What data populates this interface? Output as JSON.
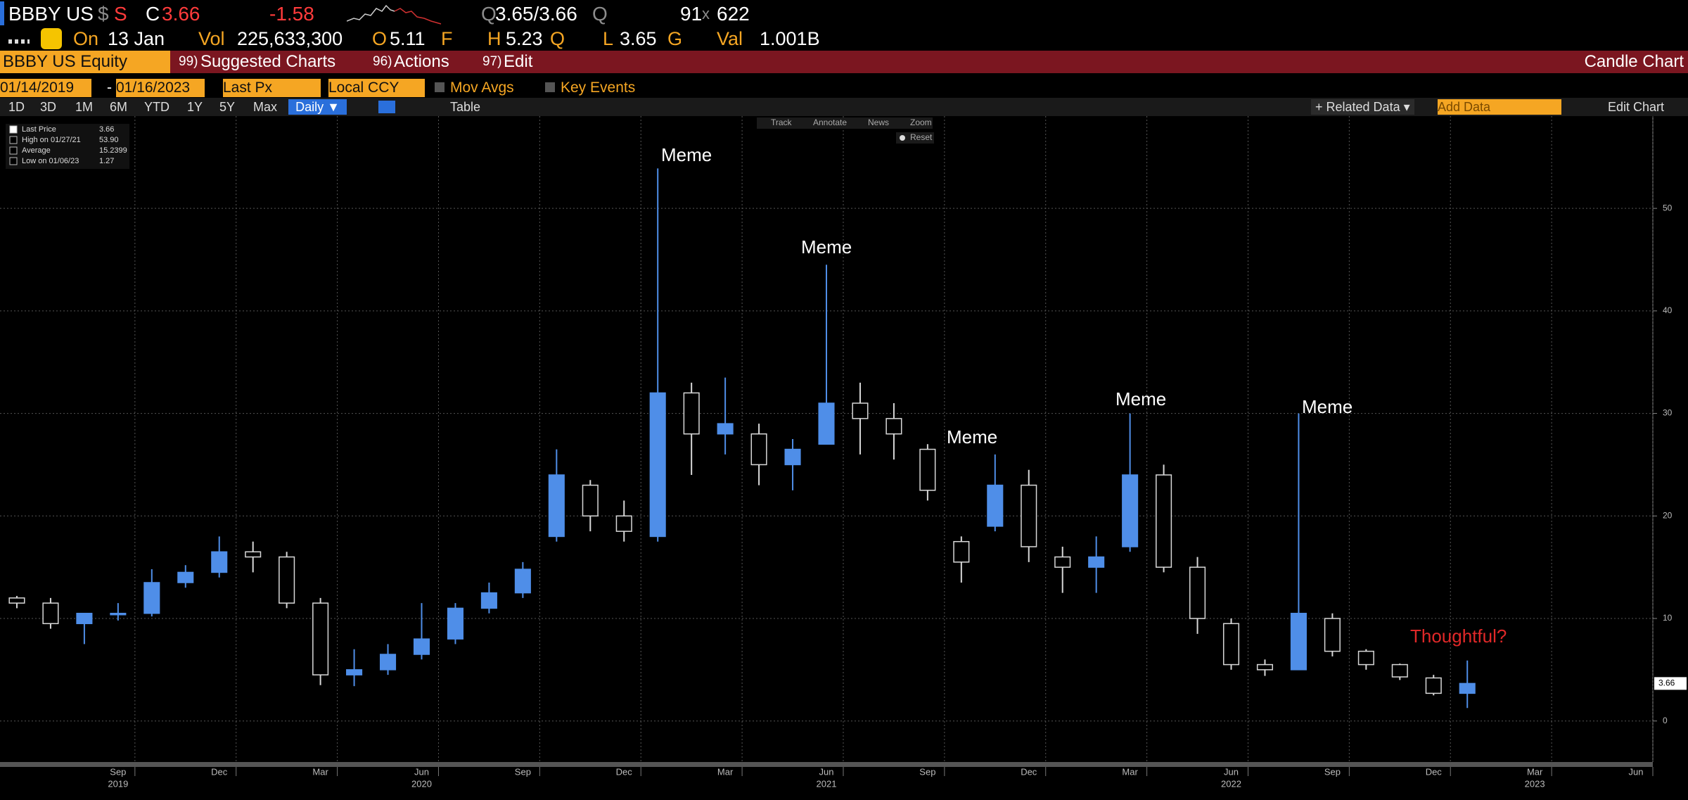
{
  "header": {
    "ticker": "BBBY US",
    "currency_symbol": "$",
    "currency_flag": "S",
    "close_flag": "C",
    "last": "3.66",
    "change": "-1.58",
    "bid_flag": "Q",
    "bid_ask": "3.65/3.66",
    "ask_flag": "Q",
    "size_bid": "91",
    "size_x": "x",
    "size_ask": "622",
    "on_label": "On",
    "date": "13 Jan",
    "vol_label": "Vol",
    "volume": "225,633,300",
    "open_label": "O",
    "open": "5.11",
    "open_flag": "F",
    "high_label": "H",
    "high": "5.23",
    "high_flag": "Q",
    "low_label": "L",
    "low": "3.65",
    "low_flag": "G",
    "val_label": "Val",
    "value": "1.001B"
  },
  "menu": {
    "security": "BBBY US Equity",
    "items": [
      {
        "num": "99)",
        "label": "Suggested Charts"
      },
      {
        "num": "96)",
        "label": "Actions"
      },
      {
        "num": "97)",
        "label": "Edit"
      }
    ],
    "chart_name": "Candle Chart"
  },
  "controls": {
    "start": "01/14/2019",
    "dash": "-",
    "end": "01/16/2023",
    "field": "Last Px",
    "currency": "Local CCY",
    "mov_avgs": "Mov Avgs",
    "key_events": "Key Events",
    "periods": [
      "1D",
      "3D",
      "1M",
      "6M",
      "YTD",
      "1Y",
      "5Y",
      "Max"
    ],
    "frequency": "Daily ▼",
    "table": "Table",
    "related": "+ Related Data ▾",
    "add_data": "Add Data",
    "edit_chart": "Edit Chart",
    "tools": [
      "Track",
      "Annotate",
      "News",
      "Zoom"
    ],
    "reset": "Reset"
  },
  "legend": [
    {
      "label": "Last Price",
      "value": "3.66"
    },
    {
      "label": "High on 01/27/21",
      "value": "53.90"
    },
    {
      "label": "Average",
      "value": "15.2399"
    },
    {
      "label": "Low on 01/06/23",
      "value": "1.27"
    }
  ],
  "chart_data": {
    "type": "candlestick",
    "x": [
      "2019-06",
      "2019-07",
      "2019-08",
      "2019-09",
      "2019-10",
      "2019-11",
      "2019-12",
      "2020-01",
      "2020-02",
      "2020-03",
      "2020-04",
      "2020-05",
      "2020-06",
      "2020-07",
      "2020-08",
      "2020-09",
      "2020-10",
      "2020-11",
      "2020-12",
      "2021-01",
      "2021-02",
      "2021-03",
      "2021-04",
      "2021-05",
      "2021-06",
      "2021-07",
      "2021-08",
      "2021-09",
      "2021-10",
      "2021-11",
      "2021-12",
      "2022-01",
      "2022-02",
      "2022-03",
      "2022-04",
      "2022-05",
      "2022-06",
      "2022-07",
      "2022-08",
      "2022-09",
      "2022-10",
      "2022-11",
      "2022-12",
      "2023-01"
    ],
    "open": [
      12,
      11.5,
      9.5,
      10.5,
      10.5,
      13.5,
      14.5,
      16.5,
      16,
      11.5,
      4.5,
      5,
      6.5,
      8,
      11,
      12.5,
      18,
      23,
      20,
      18,
      32,
      28,
      28,
      25,
      27,
      31,
      29.5,
      26.5,
      17.5,
      19,
      23,
      16,
      15,
      17,
      24,
      15,
      9.5,
      5.5,
      5,
      10,
      6.8,
      5.5,
      4.2,
      2.7
    ],
    "high": [
      12.2,
      12,
      10.5,
      11.5,
      14.8,
      15.2,
      18,
      17.5,
      16.5,
      12,
      7,
      7.5,
      11.5,
      11.5,
      13.5,
      15.5,
      26.5,
      23.5,
      21.5,
      53.9,
      33,
      33.5,
      29,
      27.5,
      44.5,
      33,
      31,
      27,
      18,
      26,
      24.5,
      17,
      18,
      30,
      25,
      16,
      10,
      6,
      30,
      10.5,
      7,
      5.6,
      4.5,
      5.9
    ],
    "low": [
      11,
      9,
      7.5,
      9.8,
      10.2,
      13,
      14,
      14.5,
      11,
      3.5,
      3.4,
      4.5,
      6,
      7.5,
      10.5,
      12,
      17.5,
      18.5,
      17.5,
      17.5,
      24,
      26,
      23,
      22.5,
      27,
      26,
      25.5,
      21.5,
      13.5,
      18.5,
      15.5,
      12.5,
      12.5,
      16.5,
      14.5,
      8.5,
      5,
      4.4,
      5,
      6.3,
      5,
      4,
      2.5,
      1.27
    ],
    "close": [
      11.5,
      9.5,
      10.5,
      10.5,
      13.5,
      14.5,
      16.5,
      16,
      11.5,
      4.5,
      5,
      6.5,
      8,
      11,
      12.5,
      14.8,
      24,
      20,
      18.5,
      32,
      28,
      29,
      25,
      26.5,
      31,
      29.5,
      28,
      22.5,
      15.5,
      23,
      17,
      15,
      16,
      24,
      15,
      10,
      5.5,
      5,
      10.5,
      6.8,
      5.5,
      4.3,
      2.7,
      3.66
    ],
    "up_color": "#4f8ee8",
    "down_color": "#d8d8d8",
    "xlim": [
      "2019-06",
      "2023-07"
    ],
    "xticks": [
      {
        "value": "2019-09",
        "label": "Sep"
      },
      {
        "value": "2019-12",
        "label": "Dec"
      },
      {
        "value": "2020-03",
        "label": "Mar"
      },
      {
        "value": "2020-06",
        "label": "Jun"
      },
      {
        "value": "2020-09",
        "label": "Sep"
      },
      {
        "value": "2020-12",
        "label": "Dec"
      },
      {
        "value": "2021-03",
        "label": "Mar"
      },
      {
        "value": "2021-06",
        "label": "Jun"
      },
      {
        "value": "2021-09",
        "label": "Sep"
      },
      {
        "value": "2021-12",
        "label": "Dec"
      },
      {
        "value": "2022-03",
        "label": "Mar"
      },
      {
        "value": "2022-06",
        "label": "Jun"
      },
      {
        "value": "2022-09",
        "label": "Sep"
      },
      {
        "value": "2022-12",
        "label": "Dec"
      },
      {
        "value": "2023-03",
        "label": "Mar"
      },
      {
        "value": "2023-06",
        "label": "Jun"
      }
    ],
    "year_ticks": [
      {
        "value": "2019-09",
        "label": "2019"
      },
      {
        "value": "2020-06",
        "label": "2020"
      },
      {
        "value": "2021-06",
        "label": "2021"
      },
      {
        "value": "2022-06",
        "label": "2022"
      },
      {
        "value": "2023-03",
        "label": "2023"
      }
    ],
    "ylim": [
      -4,
      59
    ],
    "yticks": [
      0,
      10,
      20,
      30,
      40,
      50
    ],
    "grid": true,
    "annotations": [
      "Meme",
      "Meme",
      "Meme",
      "Meme",
      "Meme",
      "Thoughtful?"
    ]
  }
}
